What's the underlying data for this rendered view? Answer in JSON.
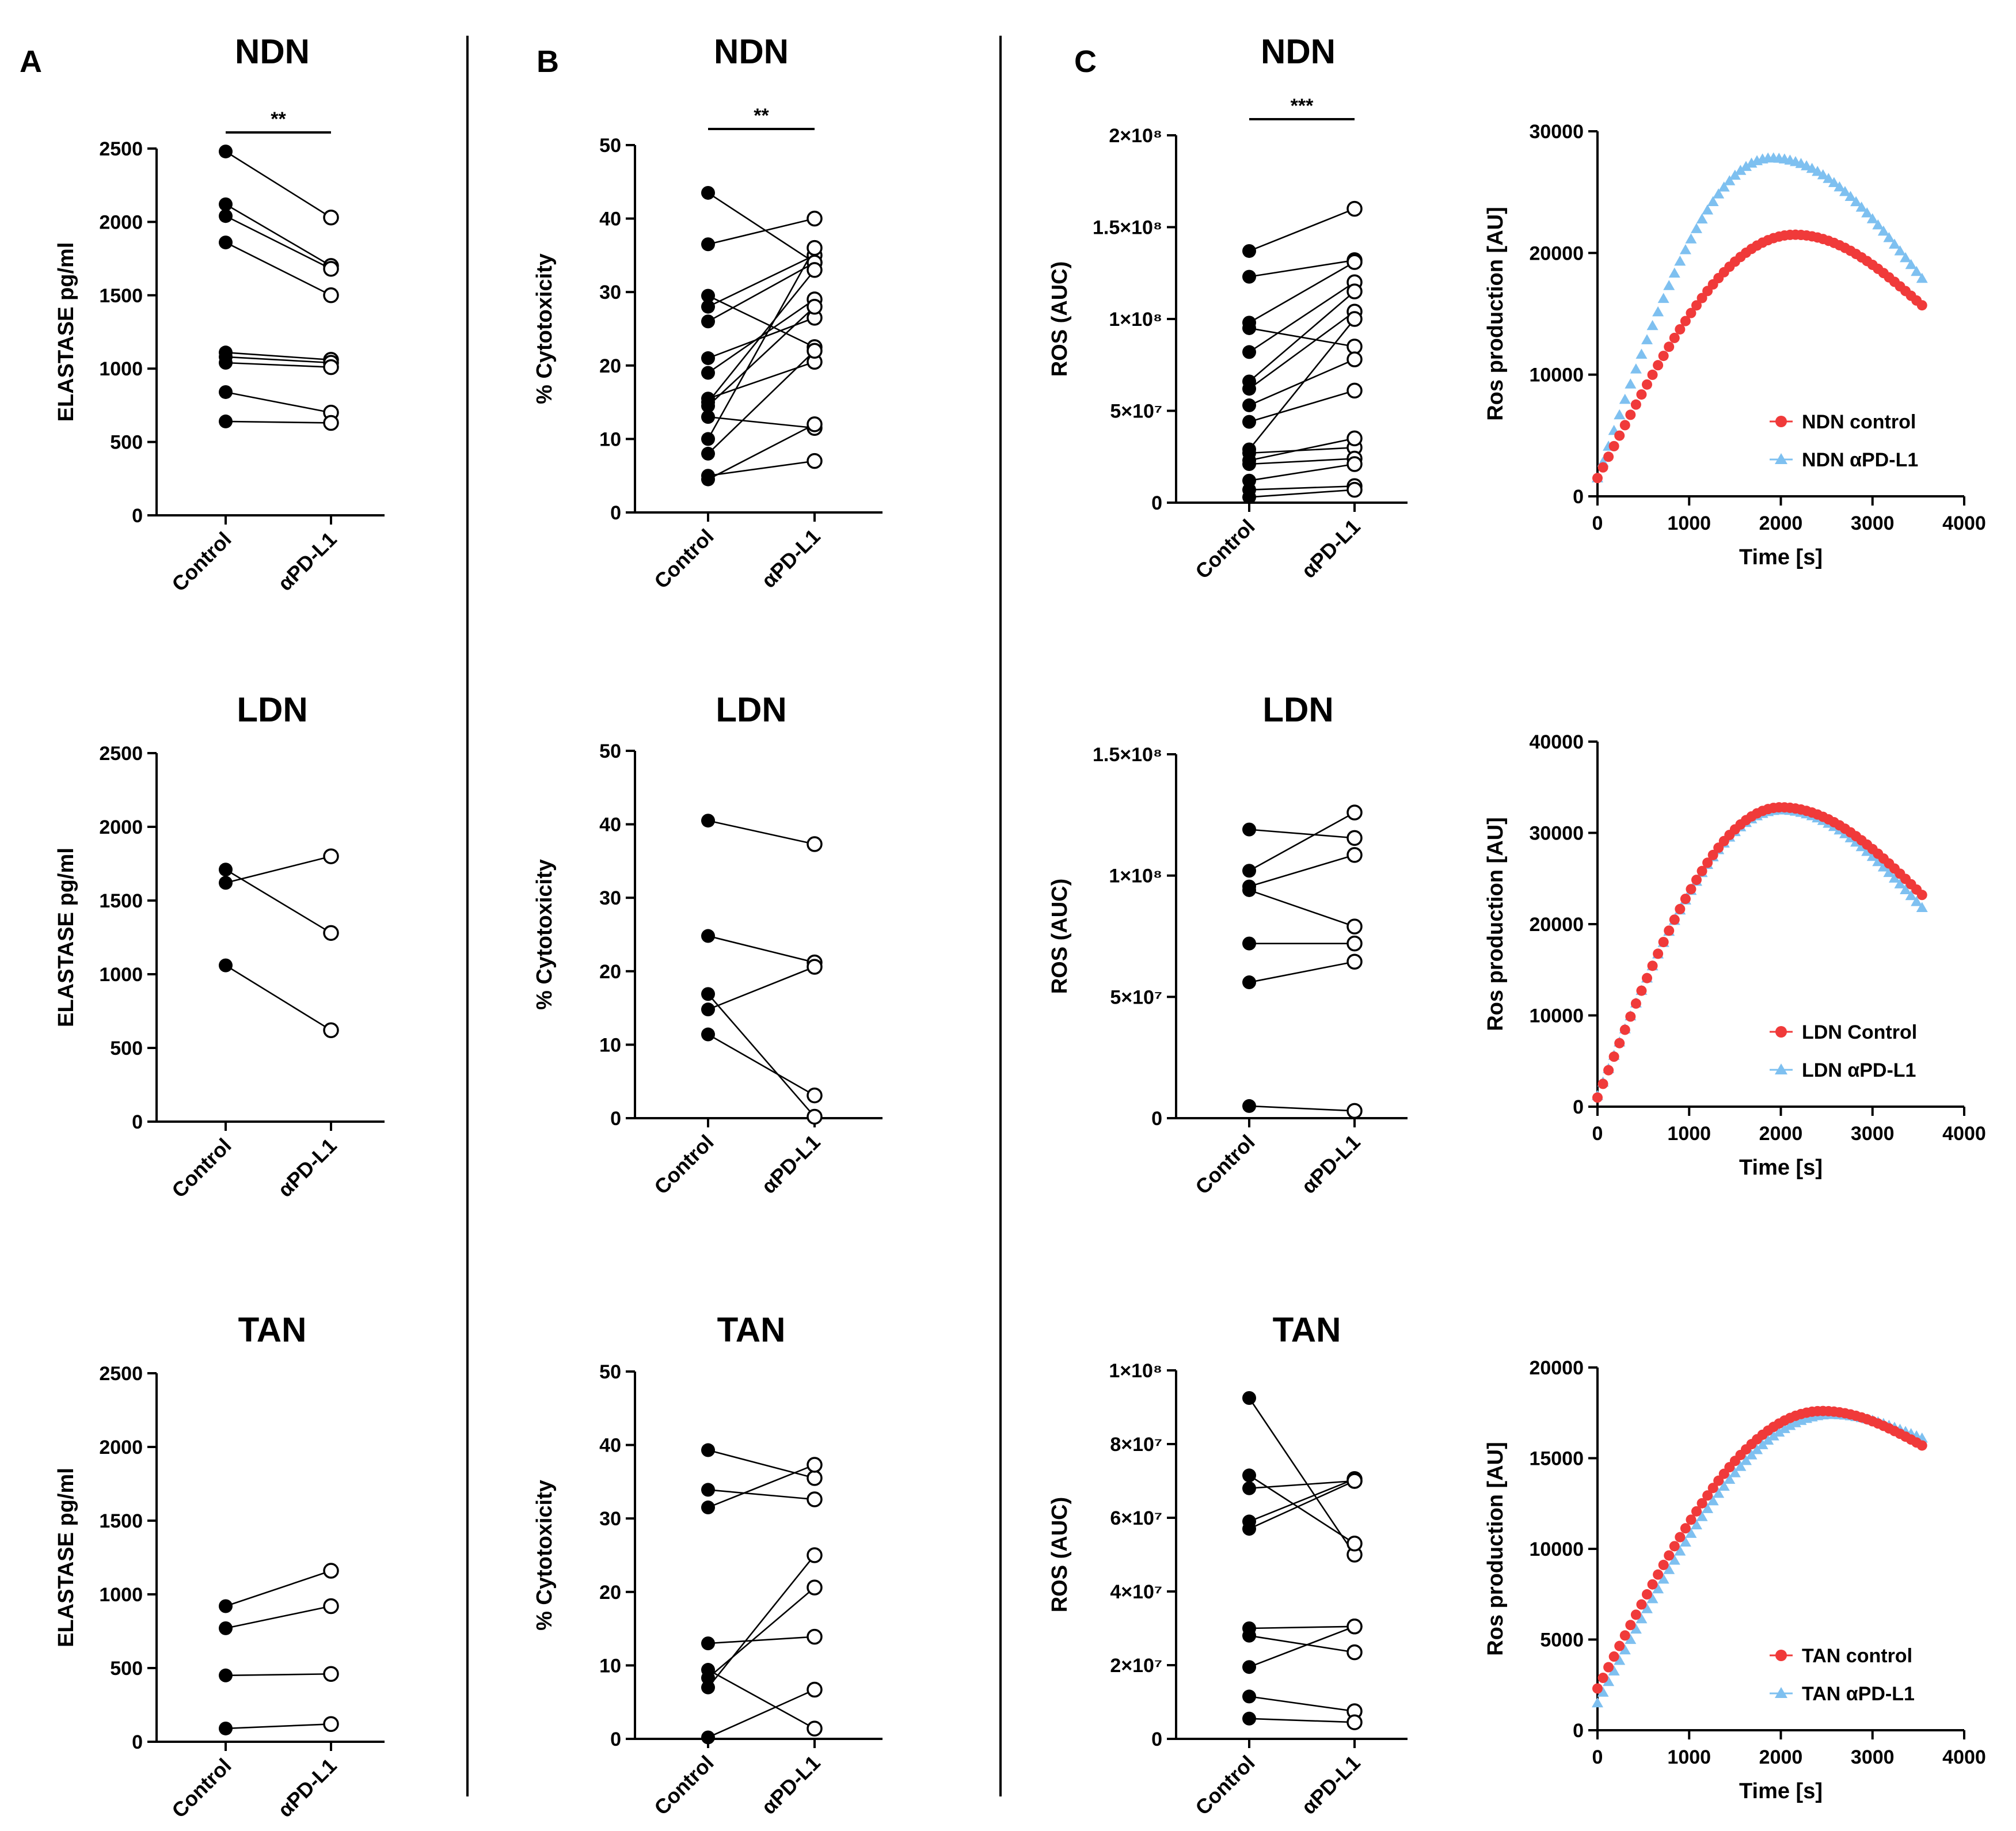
{
  "figure": {
    "panel_letters": [
      "A",
      "B",
      "C"
    ]
  },
  "colors": {
    "control_series": "#f03a3a",
    "treated_series": "#7ec0f0"
  },
  "chart_data": [
    {
      "id": "A-NDN",
      "type": "scatter",
      "subtype": "paired",
      "title": "NDN",
      "ylabel": "ELASTASE pg/ml",
      "ylim": [
        0,
        2500
      ],
      "yticks": [
        {
          "v": 0,
          "t": "0"
        },
        {
          "v": 500,
          "t": "500"
        },
        {
          "v": 1000,
          "t": "1000"
        },
        {
          "v": 1500,
          "t": "1500"
        },
        {
          "v": 2000,
          "t": "2000"
        },
        {
          "v": 2500,
          "t": "2500"
        }
      ],
      "categories": [
        "Control",
        "αPD-L1"
      ],
      "significance": "**",
      "pairs": [
        [
          2480,
          2030
        ],
        [
          2120,
          1700
        ],
        [
          2040,
          1680
        ],
        [
          1860,
          1500
        ],
        [
          1110,
          1060
        ],
        [
          1080,
          1040
        ],
        [
          1040,
          1010
        ],
        [
          840,
          700
        ],
        [
          640,
          630
        ]
      ]
    },
    {
      "id": "A-LDN",
      "type": "scatter",
      "subtype": "paired",
      "title": "LDN",
      "ylabel": "ELASTASE pg/ml",
      "ylim": [
        0,
        2500
      ],
      "yticks": [
        {
          "v": 0,
          "t": "0"
        },
        {
          "v": 500,
          "t": "500"
        },
        {
          "v": 1000,
          "t": "1000"
        },
        {
          "v": 1500,
          "t": "1500"
        },
        {
          "v": 2000,
          "t": "2000"
        },
        {
          "v": 2500,
          "t": "2500"
        }
      ],
      "categories": [
        "Control",
        "αPD-L1"
      ],
      "pairs": [
        [
          1710,
          1280
        ],
        [
          1620,
          1800
        ],
        [
          1060,
          620
        ]
      ]
    },
    {
      "id": "A-TAN",
      "type": "scatter",
      "subtype": "paired",
      "title": "TAN",
      "ylabel": "ELASTASE pg/ml",
      "ylim": [
        0,
        2500
      ],
      "yticks": [
        {
          "v": 0,
          "t": "0"
        },
        {
          "v": 500,
          "t": "500"
        },
        {
          "v": 1000,
          "t": "1000"
        },
        {
          "v": 1500,
          "t": "1500"
        },
        {
          "v": 2000,
          "t": "2000"
        },
        {
          "v": 2500,
          "t": "2500"
        }
      ],
      "categories": [
        "Control",
        "αPD-L1"
      ],
      "pairs": [
        [
          920,
          1160
        ],
        [
          770,
          920
        ],
        [
          450,
          460
        ],
        [
          90,
          120
        ]
      ]
    },
    {
      "id": "B-NDN",
      "type": "scatter",
      "subtype": "paired",
      "title": "NDN",
      "ylabel": "% Cytotoxicity",
      "ylim": [
        0,
        50
      ],
      "yticks": [
        {
          "v": 0,
          "t": "0"
        },
        {
          "v": 10,
          "t": "10"
        },
        {
          "v": 20,
          "t": "20"
        },
        {
          "v": 30,
          "t": "30"
        },
        {
          "v": 40,
          "t": "40"
        },
        {
          "v": 50,
          "t": "50"
        }
      ],
      "categories": [
        "Control",
        "αPD-L1"
      ],
      "significance": "**",
      "pairs": [
        [
          43.5,
          34
        ],
        [
          36.5,
          40
        ],
        [
          29.5,
          22.5
        ],
        [
          28,
          35
        ],
        [
          26,
          34
        ],
        [
          21,
          26.5
        ],
        [
          19,
          29
        ],
        [
          15.5,
          20.5
        ],
        [
          15,
          33
        ],
        [
          14.5,
          28
        ],
        [
          13,
          11.5
        ],
        [
          10,
          36
        ],
        [
          8,
          22
        ],
        [
          5,
          7
        ],
        [
          4.5,
          12
        ]
      ]
    },
    {
      "id": "B-LDN",
      "type": "scatter",
      "subtype": "paired",
      "title": "LDN",
      "ylabel": "% Cytotoxicity",
      "ylim": [
        0,
        50
      ],
      "yticks": [
        {
          "v": 0,
          "t": "0"
        },
        {
          "v": 10,
          "t": "10"
        },
        {
          "v": 20,
          "t": "20"
        },
        {
          "v": 30,
          "t": "30"
        },
        {
          "v": 40,
          "t": "40"
        },
        {
          "v": 50,
          "t": "50"
        }
      ],
      "categories": [
        "Control",
        "αPD-L1"
      ],
      "pairs": [
        [
          40.5,
          37.3
        ],
        [
          24.8,
          21.2
        ],
        [
          16.9,
          0.2
        ],
        [
          14.8,
          20.6
        ],
        [
          11.4,
          3.1
        ]
      ]
    },
    {
      "id": "B-TAN",
      "type": "scatter",
      "subtype": "paired",
      "title": "TAN",
      "ylabel": "% Cytotoxicity",
      "ylim": [
        0,
        50
      ],
      "yticks": [
        {
          "v": 0,
          "t": "0"
        },
        {
          "v": 10,
          "t": "10"
        },
        {
          "v": 20,
          "t": "20"
        },
        {
          "v": 30,
          "t": "30"
        },
        {
          "v": 40,
          "t": "40"
        },
        {
          "v": 50,
          "t": "50"
        }
      ],
      "categories": [
        "Control",
        "αPD-L1"
      ],
      "pairs": [
        [
          39.3,
          35.5
        ],
        [
          33.9,
          32.6
        ],
        [
          31.5,
          37.3
        ],
        [
          13,
          13.9
        ],
        [
          9.4,
          1.4
        ],
        [
          8.3,
          20.6
        ],
        [
          7,
          25
        ],
        [
          0.2,
          6.7
        ]
      ]
    },
    {
      "id": "C-NDN",
      "type": "scatter",
      "subtype": "paired",
      "title": "NDN",
      "ylabel": "ROS (AUC)",
      "ylim": [
        0,
        200000000
      ],
      "yticks": [
        {
          "v": 0,
          "t": "0"
        },
        {
          "v": 50000000,
          "t": "5×10⁷"
        },
        {
          "v": 100000000,
          "t": "1×10⁸"
        },
        {
          "v": 150000000,
          "t": "1.5×10⁸"
        },
        {
          "v": 200000000,
          "t": "2×10⁸"
        }
      ],
      "categories": [
        "Control",
        "αPD-L1"
      ],
      "significance": "***",
      "pairs": [
        [
          137000000,
          160000000
        ],
        [
          123000000,
          132000000
        ],
        [
          98000000,
          131000000
        ],
        [
          95000000,
          85000000
        ],
        [
          82000000,
          120000000
        ],
        [
          66000000,
          115000000
        ],
        [
          62000000,
          104000000
        ],
        [
          53000000,
          78000000
        ],
        [
          44000000,
          61000000
        ],
        [
          29000000,
          100000000
        ],
        [
          27000000,
          30000000
        ],
        [
          23000000,
          35000000
        ],
        [
          21000000,
          24000000
        ],
        [
          12000000,
          21000000
        ],
        [
          7000000,
          9000000
        ],
        [
          3000000,
          7000000
        ]
      ]
    },
    {
      "id": "C-LDN",
      "type": "scatter",
      "subtype": "paired",
      "title": "LDN",
      "ylabel": "ROS (AUC)",
      "ylim": [
        0,
        150000000
      ],
      "yticks": [
        {
          "v": 0,
          "t": "0"
        },
        {
          "v": 50000000,
          "t": "5×10⁷"
        },
        {
          "v": 100000000,
          "t": "1×10⁸"
        },
        {
          "v": 150000000,
          "t": "1.5×10⁸"
        }
      ],
      "categories": [
        "Control",
        "αPD-L1"
      ],
      "pairs": [
        [
          119000000,
          115500000
        ],
        [
          102000000,
          126000000
        ],
        [
          95500000,
          108500000
        ],
        [
          94000000,
          79000000
        ],
        [
          72000000,
          72000000
        ],
        [
          56000000,
          64500000
        ],
        [
          5000000,
          3000000
        ]
      ]
    },
    {
      "id": "C-TAN",
      "type": "scatter",
      "subtype": "paired",
      "title": "TAN",
      "ylabel": "ROS (AUC)",
      "ylim": [
        0,
        100000000
      ],
      "yticks": [
        {
          "v": 0,
          "t": "0"
        },
        {
          "v": 20000000,
          "t": "2×10⁷"
        },
        {
          "v": 40000000,
          "t": "4×10⁷"
        },
        {
          "v": 60000000,
          "t": "6×10⁷"
        },
        {
          "v": 80000000,
          "t": "8×10⁷"
        },
        {
          "v": 100000000,
          "t": "1×10⁸"
        }
      ],
      "categories": [
        "Control",
        "αPD-L1"
      ],
      "pairs": [
        [
          92500000,
          50000000
        ],
        [
          71500000,
          53000000
        ],
        [
          68000000,
          70000000
        ],
        [
          59000000,
          70500000
        ],
        [
          57000000,
          70000000
        ],
        [
          30000000,
          30500000
        ],
        [
          28000000,
          23500000
        ],
        [
          19500000,
          30500000
        ],
        [
          11500000,
          7500000
        ],
        [
          5500000,
          4500000
        ]
      ]
    },
    {
      "id": "C-NDN-kinetics",
      "type": "scatter",
      "xlabel": "Time [s]",
      "ylabel": "Ros production [AU]",
      "xlim": [
        0,
        4000
      ],
      "ylim": [
        0,
        30000
      ],
      "xticks": [
        {
          "v": 0,
          "t": "0"
        },
        {
          "v": 1000,
          "t": "1000"
        },
        {
          "v": 2000,
          "t": "2000"
        },
        {
          "v": 3000,
          "t": "3000"
        },
        {
          "v": 4000,
          "t": "4000"
        }
      ],
      "yticks": [
        {
          "v": 0,
          "t": "0"
        },
        {
          "v": 10000,
          "t": "10000"
        },
        {
          "v": 20000,
          "t": "20000"
        },
        {
          "v": 30000,
          "t": "30000"
        }
      ],
      "legend_position": "bottom-right",
      "series": [
        {
          "name": "NDN control",
          "marker": "circle",
          "peak_x": 2150,
          "peak_y": 21500,
          "start_y": 1500,
          "end_y": 15700,
          "x_end": 3540,
          "n": 60
        },
        {
          "name": "NDN αPD-L1",
          "marker": "triangle",
          "peak_x": 1900,
          "peak_y": 27800,
          "start_y": 1500,
          "end_y": 17900,
          "x_end": 3540,
          "n": 60
        }
      ]
    },
    {
      "id": "C-LDN-kinetics",
      "type": "scatter",
      "xlabel": "Time [s]",
      "ylabel": "Ros production [AU]",
      "xlim": [
        0,
        4000
      ],
      "ylim": [
        0,
        40000
      ],
      "xticks": [
        {
          "v": 0,
          "t": "0"
        },
        {
          "v": 1000,
          "t": "1000"
        },
        {
          "v": 2000,
          "t": "2000"
        },
        {
          "v": 3000,
          "t": "3000"
        },
        {
          "v": 4000,
          "t": "4000"
        }
      ],
      "yticks": [
        {
          "v": 0,
          "t": "0"
        },
        {
          "v": 10000,
          "t": "10000"
        },
        {
          "v": 20000,
          "t": "20000"
        },
        {
          "v": 30000,
          "t": "30000"
        },
        {
          "v": 40000,
          "t": "40000"
        }
      ],
      "legend_position": "bottom-right",
      "series": [
        {
          "name": "LDN Control",
          "marker": "circle",
          "peak_x": 2000,
          "peak_y": 32800,
          "start_y": 1000,
          "end_y": 23200,
          "x_end": 3540,
          "n": 60
        },
        {
          "name": "LDN αPD-L1",
          "marker": "triangle",
          "peak_x": 2000,
          "peak_y": 32500,
          "start_y": 1200,
          "end_y": 21800,
          "x_end": 3540,
          "n": 60
        }
      ]
    },
    {
      "id": "C-TAN-kinetics",
      "type": "scatter",
      "xlabel": "Time [s]",
      "ylabel": "Ros production [AU]",
      "xlim": [
        0,
        4000
      ],
      "ylim": [
        0,
        20000
      ],
      "xticks": [
        {
          "v": 0,
          "t": "0"
        },
        {
          "v": 1000,
          "t": "1000"
        },
        {
          "v": 2000,
          "t": "2000"
        },
        {
          "v": 3000,
          "t": "3000"
        },
        {
          "v": 4000,
          "t": "4000"
        }
      ],
      "yticks": [
        {
          "v": 0,
          "t": "0"
        },
        {
          "v": 5000,
          "t": "5000"
        },
        {
          "v": 10000,
          "t": "10000"
        },
        {
          "v": 15000,
          "t": "15000"
        },
        {
          "v": 20000,
          "t": "20000"
        }
      ],
      "legend_position": "bottom-right",
      "series": [
        {
          "name": "TAN control",
          "marker": "circle",
          "peak_x": 2450,
          "peak_y": 17600,
          "start_y": 2300,
          "end_y": 15700,
          "x_end": 3540,
          "n": 60
        },
        {
          "name": "TAN αPD-L1",
          "marker": "triangle",
          "peak_x": 2550,
          "peak_y": 17400,
          "start_y": 1500,
          "end_y": 16100,
          "x_end": 3540,
          "n": 60
        }
      ]
    }
  ]
}
